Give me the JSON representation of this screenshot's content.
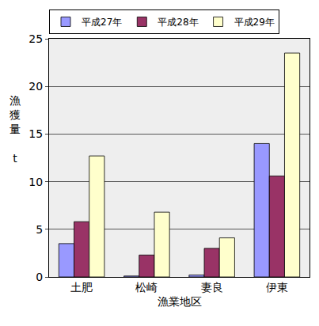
{
  "chart_data": {
    "type": "bar",
    "categories": [
      "土肥",
      "松崎",
      "妻良",
      "伊東"
    ],
    "series": [
      {
        "name": "平成27年",
        "color": "#9999ff",
        "values": [
          3.5,
          0.1,
          0.2,
          14.0
        ]
      },
      {
        "name": "平成28年",
        "color": "#993366",
        "values": [
          5.8,
          2.3,
          3.0,
          10.6
        ]
      },
      {
        "name": "平成29年",
        "color": "#ffffcc",
        "values": [
          12.7,
          6.8,
          4.1,
          23.5
        ]
      }
    ],
    "xlabel": "漁業地区",
    "ylabel": "漁獲量",
    "ylabel_unit": "t",
    "ylim": [
      0,
      25
    ],
    "yticks": [
      0,
      5,
      10,
      15,
      20,
      25
    ],
    "grid": true,
    "legend": "top"
  }
}
